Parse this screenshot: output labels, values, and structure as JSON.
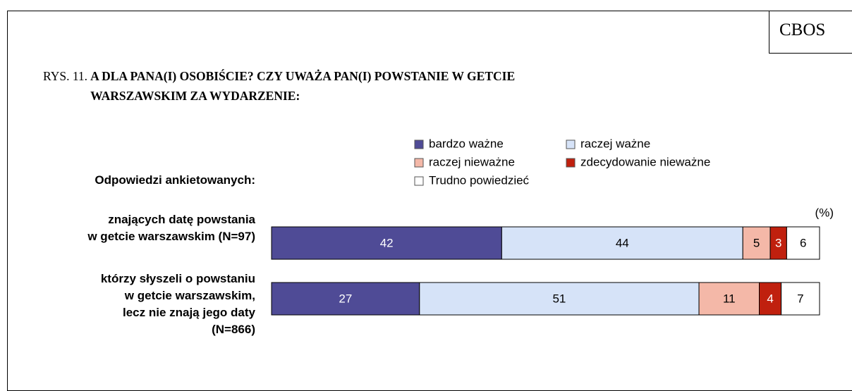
{
  "chart_data": {
    "type": "stacked_barh",
    "source": "CBOS",
    "title_prefix": "RYS. 11.",
    "title": "A DLA PANA(I) OSOBIŚCIE? CZY UWAŻA PAN(I) POWSTANIE W GETCIE\nWARSZAWSKIM ZA WYDARZENIE:",
    "legend_title": "Odpowiedzi ankietowanych:",
    "unit_label": "(%)",
    "categories": [
      "znających datę powstania\nw getcie warszawskim (N=97)",
      "którzy słyszeli o powstaniu\nw getcie warszawskim,\nlecz nie znają jego daty\n(N=866)"
    ],
    "series": [
      {
        "name": "bardzo ważne",
        "color": "#4f4b96",
        "values": [
          42,
          27
        ]
      },
      {
        "name": "raczej ważne",
        "color": "#d6e3f8",
        "values": [
          44,
          51
        ]
      },
      {
        "name": "raczej nieważne",
        "color": "#f4b8a8",
        "values": [
          5,
          11
        ]
      },
      {
        "name": "zdecydowanie nieważne",
        "color": "#c0200e",
        "values": [
          3,
          4
        ]
      },
      {
        "name": "Trudno powiedzieć",
        "color": "#ffffff",
        "values": [
          6,
          7
        ]
      }
    ],
    "xlim": [
      0,
      100
    ],
    "legend": "top"
  }
}
